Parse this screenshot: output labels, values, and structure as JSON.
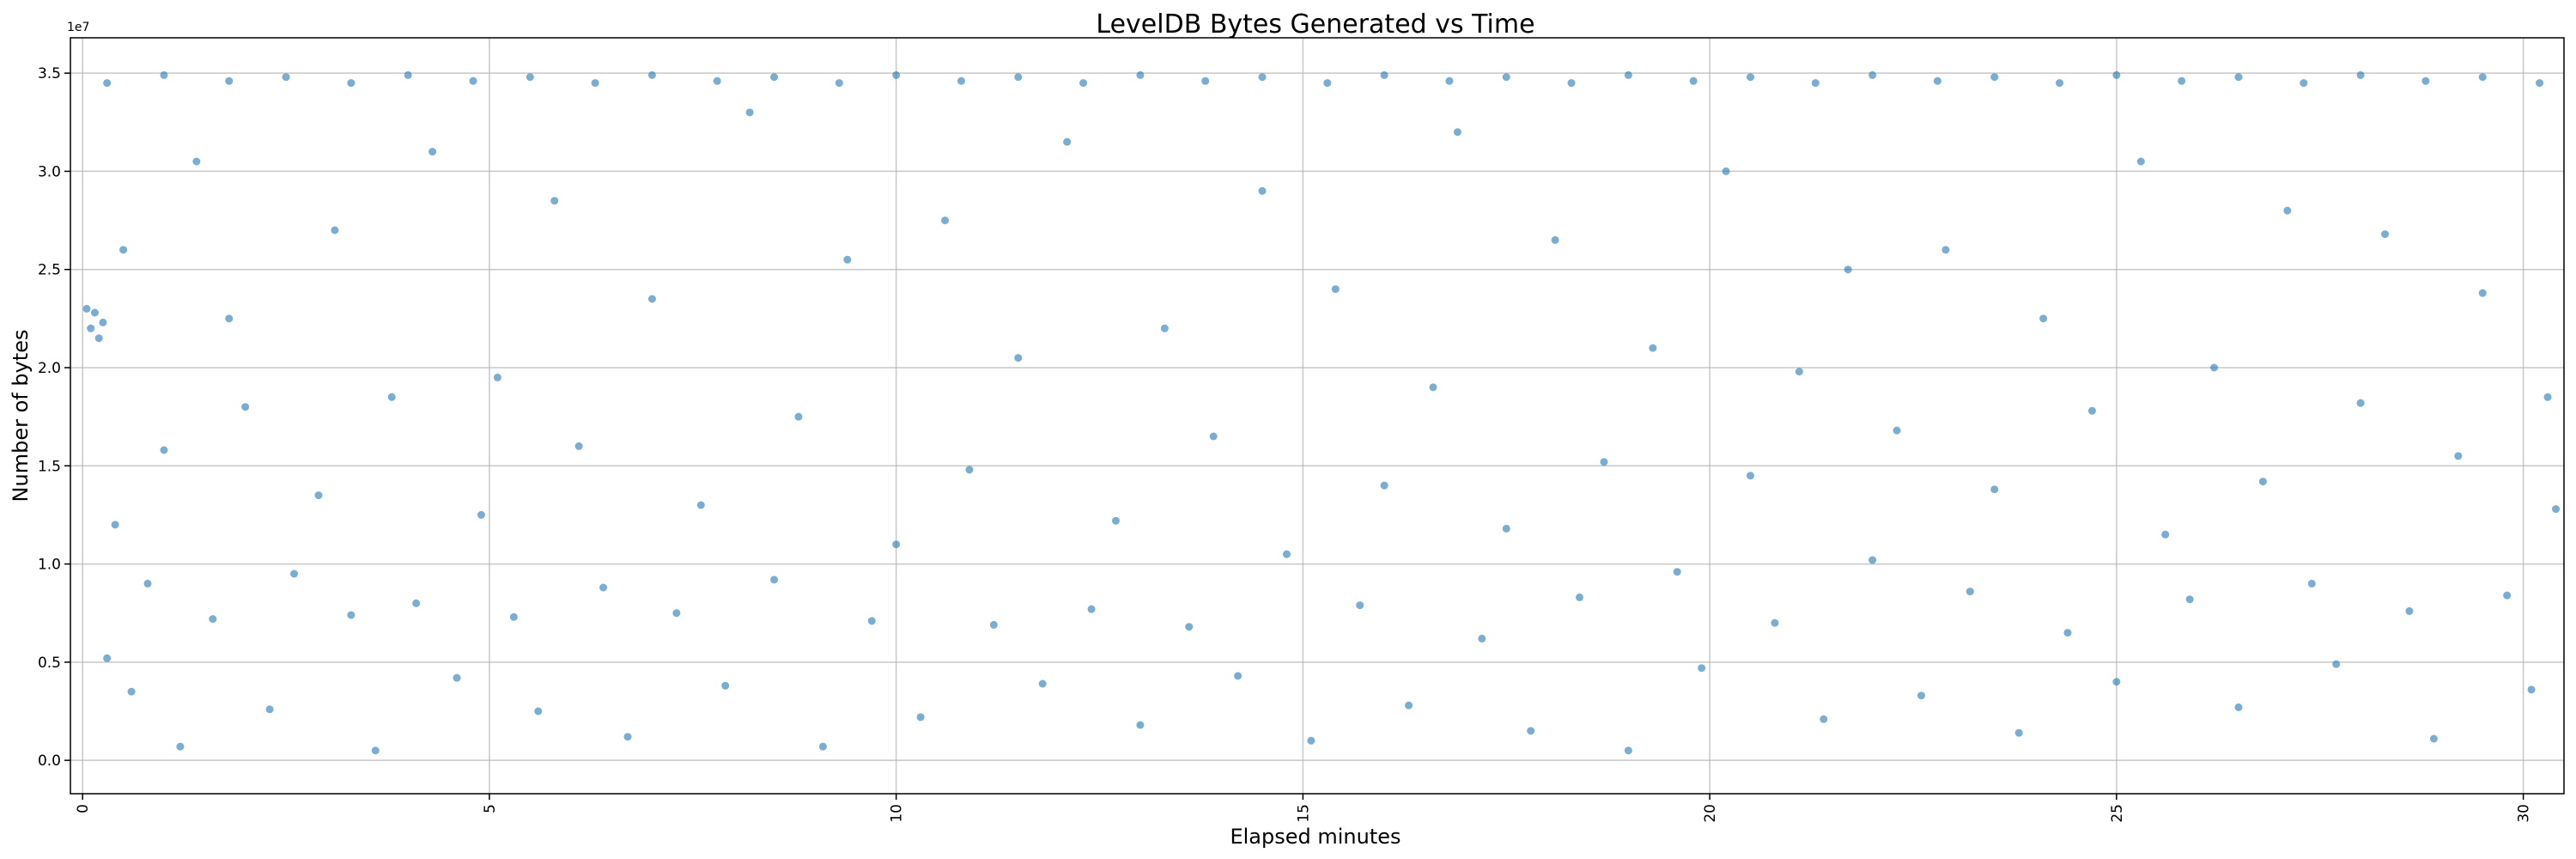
{
  "chart_data": {
    "type": "scatter",
    "title": "LevelDB Bytes Generated vs Time",
    "xlabel": "Elapsed minutes",
    "ylabel": "Number of bytes",
    "y_offset_label": "1e7",
    "color": "#1f77b4",
    "grid": true,
    "xlim": [
      -0.15,
      30.5
    ],
    "ylim": [
      -1700000,
      36800000
    ],
    "xticks": [
      0,
      5,
      10,
      15,
      20,
      25,
      30
    ],
    "yticks": [
      {
        "value": 0,
        "label": "0.0"
      },
      {
        "value": 5000000,
        "label": "0.5"
      },
      {
        "value": 10000000,
        "label": "1.0"
      },
      {
        "value": 15000000,
        "label": "1.5"
      },
      {
        "value": 20000000,
        "label": "2.0"
      },
      {
        "value": 25000000,
        "label": "2.5"
      },
      {
        "value": 30000000,
        "label": "3.0"
      },
      {
        "value": 35000000,
        "label": "3.5"
      }
    ],
    "x": [
      0.3,
      1.0,
      1.8,
      2.5,
      3.3,
      4.0,
      4.8,
      5.5,
      6.3,
      7.0,
      7.8,
      8.5,
      9.3,
      10.0,
      10.8,
      11.5,
      12.3,
      13.0,
      13.8,
      14.5,
      15.3,
      16.0,
      16.8,
      17.5,
      18.3,
      19.0,
      19.8,
      20.5,
      21.3,
      22.0,
      22.8,
      23.5,
      24.3,
      25.0,
      25.8,
      26.5,
      27.3,
      28.0,
      28.8,
      29.5,
      30.2,
      0.1,
      0.15,
      0.2,
      0.05,
      0.25,
      0.3,
      0.4,
      0.5,
      0.6,
      0.8,
      1.0,
      1.2,
      1.4,
      1.6,
      1.8,
      2.0,
      2.3,
      2.6,
      2.9,
      3.1,
      3.3,
      3.6,
      3.8,
      4.1,
      4.3,
      4.6,
      4.9,
      5.1,
      5.3,
      5.6,
      5.8,
      6.1,
      6.4,
      6.7,
      7.0,
      7.3,
      7.6,
      7.9,
      8.2,
      8.5,
      8.8,
      9.1,
      9.4,
      9.7,
      10.0,
      10.3,
      10.6,
      10.9,
      11.2,
      11.5,
      11.8,
      12.1,
      12.4,
      12.7,
      13.0,
      13.3,
      13.6,
      13.9,
      14.2,
      14.5,
      14.8,
      15.1,
      15.4,
      15.7,
      16.0,
      16.3,
      16.6,
      16.9,
      17.2,
      17.5,
      17.8,
      18.1,
      18.4,
      18.7,
      19.0,
      19.3,
      19.6,
      19.9,
      20.2,
      20.5,
      20.8,
      21.1,
      21.4,
      21.7,
      22.0,
      22.3,
      22.6,
      22.9,
      23.2,
      23.5,
      23.8,
      24.1,
      24.4,
      24.7,
      25.0,
      25.3,
      25.6,
      25.9,
      26.2,
      26.5,
      26.8,
      27.1,
      27.4,
      27.7,
      28.0,
      28.3,
      28.6,
      28.9,
      29.2,
      29.5,
      29.8,
      30.1,
      30.3,
      30.4
    ],
    "values": [
      34500000,
      34900000,
      34600000,
      34800000,
      34500000,
      34900000,
      34600000,
      34800000,
      34500000,
      34900000,
      34600000,
      34800000,
      34500000,
      34900000,
      34600000,
      34800000,
      34500000,
      34900000,
      34600000,
      34800000,
      34500000,
      34900000,
      34600000,
      34800000,
      34500000,
      34900000,
      34600000,
      34800000,
      34500000,
      34900000,
      34600000,
      34800000,
      34500000,
      34900000,
      34600000,
      34800000,
      34500000,
      34900000,
      34600000,
      34800000,
      34500000,
      22000000,
      22800000,
      21500000,
      23000000,
      22300000,
      5200000,
      12000000,
      26000000,
      3500000,
      9000000,
      15800000,
      700000,
      30500000,
      7200000,
      22500000,
      18000000,
      2600000,
      9500000,
      13500000,
      27000000,
      7400000,
      500000,
      18500000,
      8000000,
      31000000,
      4200000,
      12500000,
      19500000,
      7300000,
      2500000,
      28500000,
      16000000,
      8800000,
      1200000,
      23500000,
      7500000,
      13000000,
      3800000,
      33000000,
      9200000,
      17500000,
      700000,
      25500000,
      7100000,
      11000000,
      2200000,
      27500000,
      14800000,
      6900000,
      20500000,
      3900000,
      31500000,
      7700000,
      12200000,
      1800000,
      22000000,
      6800000,
      16500000,
      4300000,
      29000000,
      10500000,
      1000000,
      24000000,
      7900000,
      14000000,
      2800000,
      19000000,
      32000000,
      6200000,
      11800000,
      1500000,
      26500000,
      8300000,
      15200000,
      500000,
      21000000,
      9600000,
      4700000,
      30000000,
      14500000,
      7000000,
      19800000,
      2100000,
      25000000,
      10200000,
      16800000,
      3300000,
      26000000,
      8600000,
      13800000,
      1400000,
      22500000,
      6500000,
      17800000,
      4000000,
      30500000,
      11500000,
      8200000,
      20000000,
      2700000,
      14200000,
      28000000,
      9000000,
      4900000,
      18200000,
      26800000,
      7600000,
      1100000,
      15500000,
      23800000,
      8400000,
      3600000,
      18500000,
      12800000
    ]
  }
}
